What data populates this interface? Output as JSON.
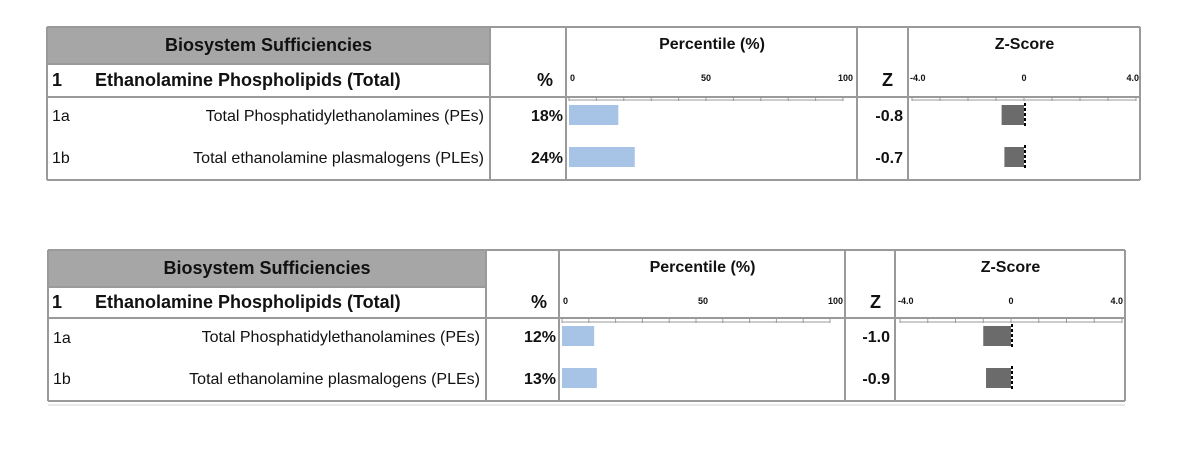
{
  "colors": {
    "header_fill": "#a6a6a6",
    "percentile_bar": "#a7c4e6",
    "zscore_bar": "#6b6b6b",
    "grid": "#9a9a9a",
    "row_code_fill": "#ffffff"
  },
  "chart_data": [
    {
      "type": "table",
      "title": "Biosystem Sufficiencies",
      "section_code": "1",
      "section_name": "Ethanolamine Phospholipids (Total)",
      "pct_header": "%",
      "z_header": "Z",
      "percentile": {
        "title": "Percentile (%)",
        "range": [
          0,
          100
        ],
        "tick_labels": [
          "0",
          "50",
          "100"
        ]
      },
      "zscore": {
        "title": "Z-Score",
        "range": [
          -4.0,
          4.0
        ],
        "tick_labels": [
          "-4.0",
          "0",
          "4.0"
        ]
      },
      "rows": [
        {
          "code": "1a",
          "name": "Total Phosphatidylethanolamines (PEs)",
          "pct_text": "18%",
          "pct": 18,
          "z_text": "-0.8",
          "z": -0.8
        },
        {
          "code": "1b",
          "name": "Total ethanolamine plasmalogens (PLEs)",
          "pct_text": "24%",
          "pct": 24,
          "z_text": "-0.7",
          "z": -0.7
        }
      ]
    },
    {
      "type": "table",
      "title": "Biosystem Sufficiencies",
      "section_code": "1",
      "section_name": "Ethanolamine Phospholipids (Total)",
      "pct_header": "%",
      "z_header": "Z",
      "percentile": {
        "title": "Percentile (%)",
        "range": [
          0,
          100
        ],
        "tick_labels": [
          "0",
          "50",
          "100"
        ]
      },
      "zscore": {
        "title": "Z-Score",
        "range": [
          -4.0,
          4.0
        ],
        "tick_labels": [
          "-4.0",
          "0",
          "4.0"
        ]
      },
      "rows": [
        {
          "code": "1a",
          "name": "Total Phosphatidylethanolamines (PEs)",
          "pct_text": "12%",
          "pct": 12,
          "z_text": "-1.0",
          "z": -1.0
        },
        {
          "code": "1b",
          "name": "Total ethanolamine plasmalogens (PLEs)",
          "pct_text": "13%",
          "pct": 13,
          "z_text": "-0.9",
          "z": -0.9
        }
      ]
    }
  ]
}
